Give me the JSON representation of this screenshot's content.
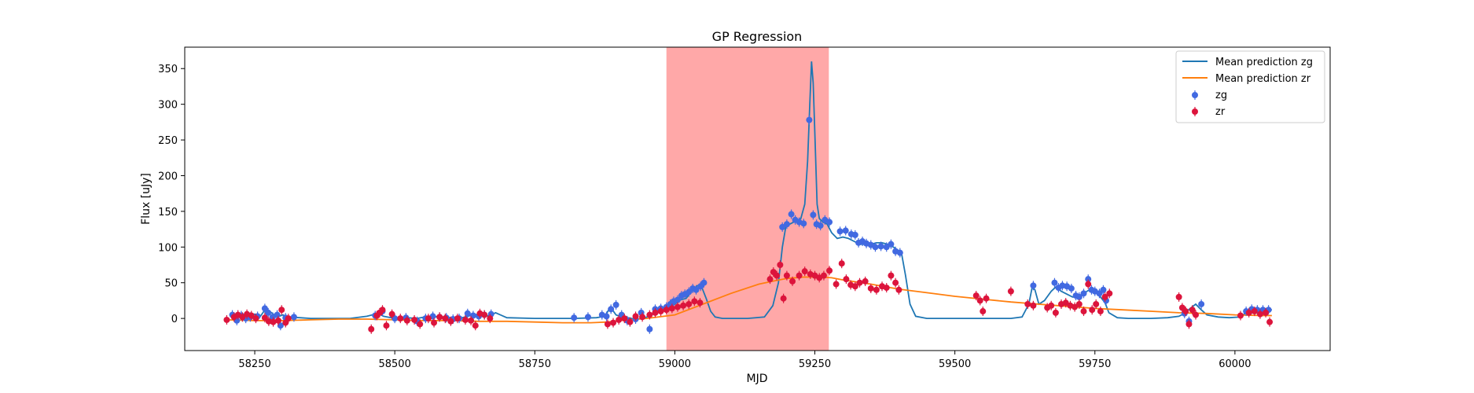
{
  "chart_data": {
    "type": "scatter",
    "title": "GP Regression",
    "xlabel": "MJD",
    "ylabel": "Flux [uJy]",
    "xlim": [
      58125,
      60170
    ],
    "ylim": [
      -45,
      380
    ],
    "x_ticks": [
      58250,
      58500,
      58750,
      59000,
      59250,
      59500,
      59750,
      60000
    ],
    "y_ticks": [
      0,
      50,
      100,
      150,
      200,
      250,
      300,
      350
    ],
    "grid": false,
    "legend_position": "top-right",
    "highlight_span": {
      "x0": 58985,
      "x1": 59275,
      "color": "#ff0000",
      "alpha": 0.34
    },
    "lines": [
      {
        "name": "Mean prediction zg",
        "color": "#1f77b4",
        "x": [
          58210,
          58225,
          58240,
          58250,
          58260,
          58270,
          58280,
          58290,
          58300,
          58310,
          58330,
          58350,
          58380,
          58420,
          58450,
          58470,
          58480,
          58500,
          58520,
          58540,
          58560,
          58580,
          58600,
          58620,
          58640,
          58650,
          58660,
          58670,
          58680,
          58700,
          58750,
          58820,
          58860,
          58875,
          58885,
          58895,
          58905,
          58915,
          58930,
          58945,
          58960,
          58975,
          58990,
          59000,
          59010,
          59020,
          59030,
          59040,
          59048,
          59056,
          59064,
          59072,
          59085,
          59100,
          59130,
          59160,
          59175,
          59185,
          59192,
          59198,
          59205,
          59215,
          59225,
          59232,
          59237,
          59241,
          59244,
          59247,
          59250,
          59254,
          59258,
          59264,
          59272,
          59280,
          59290,
          59300,
          59310,
          59320,
          59330,
          59340,
          59350,
          59360,
          59370,
          59380,
          59390,
          59398,
          59405,
          59412,
          59420,
          59430,
          59450,
          59500,
          59550,
          59600,
          59620,
          59632,
          59638,
          59643,
          59650,
          59660,
          59672,
          59680,
          59690,
          59700,
          59710,
          59720,
          59730,
          59740,
          59750,
          59760,
          59768,
          59775,
          59790,
          59810,
          59850,
          59880,
          59900,
          59910,
          59920,
          59930,
          59940,
          59950,
          59970,
          59990,
          60010,
          60020,
          60030,
          60040,
          60050,
          60060,
          60066
        ],
        "y": [
          3,
          1,
          5,
          6,
          3,
          14,
          8,
          2,
          5,
          2,
          1,
          0,
          0,
          0,
          3,
          7,
          3,
          0,
          1,
          0,
          3,
          2,
          1,
          1,
          5,
          6,
          3,
          4,
          8,
          1,
          0,
          0,
          1,
          3,
          16,
          5,
          2,
          1,
          -1,
          0,
          6,
          12,
          17,
          20,
          26,
          28,
          38,
          46,
          44,
          28,
          10,
          2,
          0,
          0,
          0,
          2,
          18,
          50,
          100,
          128,
          132,
          136,
          140,
          160,
          220,
          300,
          360,
          330,
          260,
          160,
          140,
          135,
          132,
          120,
          112,
          114,
          112,
          108,
          104,
          104,
          104,
          106,
          106,
          104,
          100,
          96,
          90,
          60,
          20,
          3,
          0,
          0,
          0,
          0,
          2,
          20,
          44,
          40,
          20,
          25,
          38,
          44,
          38,
          34,
          30,
          30,
          35,
          40,
          38,
          30,
          22,
          8,
          1,
          0,
          0,
          1,
          3,
          7,
          14,
          20,
          12,
          5,
          2,
          1,
          2,
          8,
          12,
          12,
          12,
          12,
          12
        ]
      },
      {
        "name": "Mean prediction zr",
        "color": "#ff7f0e",
        "x": [
          58200,
          58250,
          58300,
          58350,
          58400,
          58450,
          58500,
          58550,
          58600,
          58650,
          58700,
          58750,
          58800,
          58850,
          58880,
          58900,
          58950,
          59000,
          59050,
          59100,
          59150,
          59180,
          59200,
          59230,
          59260,
          59280,
          59300,
          59350,
          59400,
          59450,
          59500,
          59550,
          59600,
          59650,
          59700,
          59750,
          59800,
          59850,
          59900,
          59950,
          60000,
          60050,
          60066
        ],
        "y": [
          -2,
          -3,
          -3,
          -2,
          -1,
          -1,
          -2,
          -3,
          -3,
          -4,
          -4,
          -5,
          -6,
          -6,
          -5,
          -3,
          0,
          5,
          20,
          35,
          48,
          53,
          56,
          58,
          58,
          57,
          54,
          48,
          41,
          36,
          31,
          27,
          23,
          20,
          17,
          14,
          12,
          10,
          8,
          7,
          5,
          4,
          4
        ]
      }
    ],
    "series": [
      {
        "name": "zg",
        "color": "#4169e1",
        "x": [
          58210,
          58218,
          58226,
          58234,
          58242,
          58255,
          58268,
          58274,
          58282,
          58290,
          58296,
          58305,
          58320,
          58465,
          58478,
          58500,
          58520,
          58540,
          58555,
          58568,
          58580,
          58592,
          58604,
          58615,
          58630,
          58640,
          58650,
          58660,
          58672,
          58820,
          58845,
          58870,
          58878,
          58886,
          58895,
          58905,
          58915,
          58930,
          58940,
          58955,
          58965,
          58975,
          58985,
          58992,
          58998,
          59005,
          59012,
          59018,
          59025,
          59032,
          59038,
          59046,
          59052,
          59192,
          59200,
          59208,
          59215,
          59222,
          59230,
          59240,
          59247,
          59253,
          59260,
          59268,
          59276,
          59295,
          59305,
          59315,
          59322,
          59328,
          59335,
          59342,
          59350,
          59358,
          59368,
          59378,
          59386,
          59394,
          59402,
          59640,
          59678,
          59685,
          59692,
          59700,
          59708,
          59716,
          59722,
          59730,
          59738,
          59744,
          59750,
          59758,
          59765,
          59770,
          59910,
          59918,
          59940,
          60020,
          60030,
          60040,
          60050,
          60060
        ],
        "y": [
          5,
          -3,
          4,
          0,
          2,
          3,
          14,
          8,
          2,
          5,
          -10,
          1,
          2,
          4,
          10,
          0,
          1,
          -4,
          0,
          3,
          2,
          1,
          -1,
          0,
          7,
          4,
          3,
          5,
          6,
          1,
          2,
          5,
          3,
          13,
          19,
          5,
          -3,
          -1,
          8,
          -15,
          13,
          14,
          16,
          20,
          24,
          26,
          32,
          34,
          37,
          42,
          40,
          45,
          50,
          128,
          132,
          146,
          138,
          135,
          133,
          278,
          145,
          132,
          130,
          138,
          135,
          122,
          123,
          118,
          117,
          106,
          108,
          105,
          103,
          100,
          101,
          100,
          104,
          94,
          92,
          46,
          50,
          43,
          46,
          45,
          42,
          32,
          30,
          35,
          55,
          40,
          38,
          35,
          40,
          25,
          7,
          -4,
          20,
          10,
          13,
          12,
          12,
          12
        ]
      },
      {
        "name": "zr",
        "color": "#dc143c",
        "x": [
          58200,
          58213,
          58220,
          58228,
          58236,
          58244,
          58252,
          58268,
          58275,
          58283,
          58292,
          58298,
          58305,
          58310,
          58458,
          58468,
          58473,
          58478,
          58485,
          58495,
          58510,
          58522,
          58535,
          58545,
          58560,
          58570,
          58580,
          58590,
          58600,
          58612,
          58626,
          58636,
          58644,
          58652,
          58660,
          58670,
          58880,
          58890,
          58900,
          58910,
          58920,
          58930,
          58942,
          58955,
          58965,
          58975,
          58985,
          58995,
          59005,
          59015,
          59025,
          59035,
          59045,
          59170,
          59176,
          59182,
          59188,
          59194,
          59200,
          59210,
          59222,
          59232,
          59242,
          59250,
          59258,
          59266,
          59276,
          59288,
          59298,
          59306,
          59314,
          59322,
          59330,
          59340,
          59350,
          59360,
          59370,
          59378,
          59386,
          59394,
          59400,
          59538,
          59545,
          59550,
          59556,
          59600,
          59630,
          59640,
          59665,
          59672,
          59680,
          59690,
          59698,
          59706,
          59714,
          59722,
          59730,
          59738,
          59745,
          59752,
          59760,
          59768,
          59776,
          59900,
          59906,
          59912,
          59918,
          59924,
          59930,
          60010,
          60025,
          60035,
          60045,
          60055,
          60062
        ],
        "y": [
          -2,
          2,
          5,
          2,
          6,
          4,
          0,
          1,
          -4,
          -5,
          -3,
          12,
          -6,
          0,
          -15,
          4,
          8,
          12,
          -10,
          6,
          0,
          -3,
          -2,
          -8,
          0,
          -6,
          2,
          0,
          -4,
          0,
          -2,
          -3,
          -10,
          7,
          5,
          0,
          -8,
          -6,
          -2,
          0,
          -5,
          3,
          2,
          5,
          8,
          10,
          12,
          14,
          16,
          18,
          20,
          24,
          22,
          55,
          65,
          60,
          75,
          28,
          60,
          52,
          60,
          66,
          62,
          60,
          57,
          60,
          67,
          48,
          77,
          55,
          47,
          45,
          50,
          52,
          42,
          40,
          45,
          43,
          60,
          50,
          40,
          32,
          25,
          10,
          28,
          38,
          20,
          18,
          15,
          18,
          8,
          20,
          22,
          18,
          16,
          20,
          10,
          48,
          12,
          20,
          10,
          30,
          35,
          30,
          15,
          10,
          -8,
          12,
          5,
          4,
          8,
          10,
          6,
          8,
          -5
        ]
      }
    ]
  }
}
